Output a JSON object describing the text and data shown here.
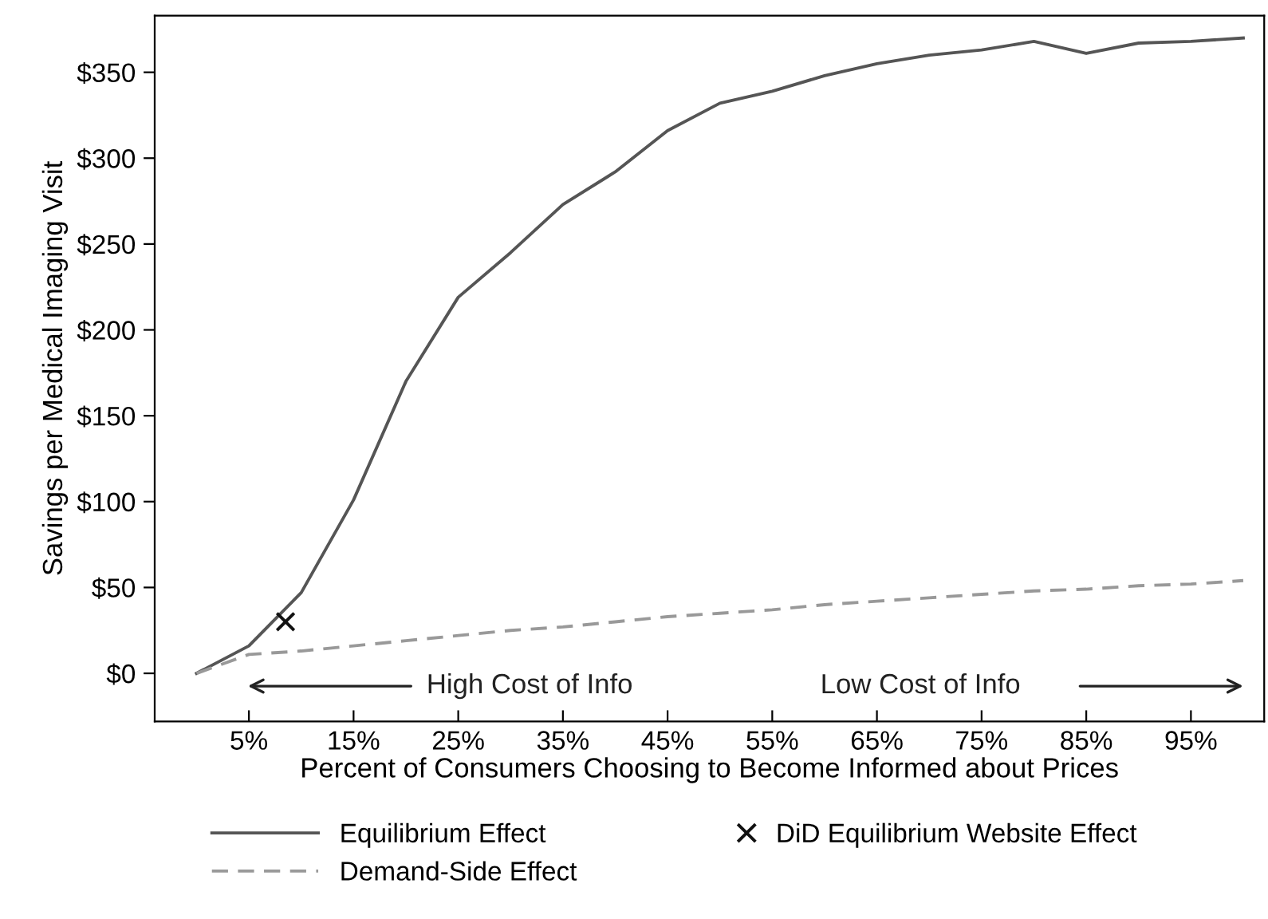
{
  "chart_data": {
    "type": "line",
    "xlabel": "Percent of Consumers Choosing to Become Informed about Prices",
    "ylabel": "Savings per Medical Imaging Visit",
    "xlim": [
      -4,
      102
    ],
    "xticks": [
      {
        "value": 5,
        "label": "5%"
      },
      {
        "value": 15,
        "label": "15%"
      },
      {
        "value": 25,
        "label": "25%"
      },
      {
        "value": 35,
        "label": "35%"
      },
      {
        "value": 45,
        "label": "45%"
      },
      {
        "value": 55,
        "label": "55%"
      },
      {
        "value": 65,
        "label": "65%"
      },
      {
        "value": 75,
        "label": "75%"
      },
      {
        "value": 85,
        "label": "85%"
      },
      {
        "value": 95,
        "label": "95%"
      }
    ],
    "ylim": [
      -28,
      383
    ],
    "yticks": [
      {
        "value": 0,
        "label": "$0"
      },
      {
        "value": 50,
        "label": "$50"
      },
      {
        "value": 100,
        "label": "$100"
      },
      {
        "value": 150,
        "label": "$150"
      },
      {
        "value": 200,
        "label": "$200"
      },
      {
        "value": 250,
        "label": "$250"
      },
      {
        "value": 300,
        "label": "$300"
      },
      {
        "value": 350,
        "label": "$350"
      }
    ],
    "grid": false,
    "legend": "bottom",
    "series": [
      {
        "name": "Equilibrium Effect",
        "color": "#555555",
        "line_style": "solid",
        "marker": "none",
        "x": [
          0,
          5,
          10,
          15,
          20,
          25,
          30,
          35,
          40,
          45,
          50,
          55,
          60,
          65,
          70,
          75,
          80,
          85,
          90,
          95,
          100
        ],
        "values": [
          0,
          16,
          47,
          101,
          170,
          219,
          245,
          273,
          292,
          316,
          332,
          339,
          348,
          355,
          360,
          363,
          368,
          361,
          367,
          368,
          370
        ]
      },
      {
        "name": "DiD Equilibrium Website Effect",
        "type": "scatter",
        "color": "#111111",
        "marker": "cross",
        "x": [
          8.5
        ],
        "values": [
          30
        ]
      },
      {
        "name": "Demand-Side Effect",
        "color": "#999999",
        "line_style": "dashed",
        "marker": "none",
        "x": [
          0,
          5,
          10,
          15,
          20,
          25,
          30,
          35,
          40,
          45,
          50,
          55,
          60,
          65,
          70,
          75,
          80,
          85,
          90,
          95,
          100
        ],
        "values": [
          0,
          11,
          13,
          16,
          19,
          22,
          25,
          27,
          30,
          33,
          35,
          37,
          40,
          42,
          44,
          46,
          48,
          49,
          51,
          52,
          54
        ]
      }
    ],
    "annotations": [
      "High Cost of Info",
      "Low Cost of Info"
    ]
  }
}
